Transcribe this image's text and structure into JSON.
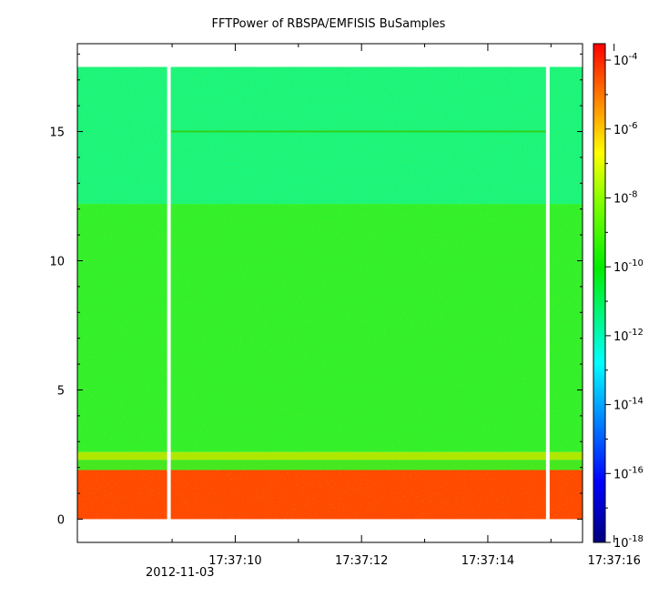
{
  "chart_data": {
    "type": "heatmap",
    "title": "FFTPower of RBSPA/EMFISIS  BuSamples",
    "xlabel": "",
    "ylabel": "",
    "x_ticks": [
      "17:37:10",
      "17:37:12",
      "17:37:14",
      "17:37:16"
    ],
    "x_date_label": "2012-11-03",
    "y_ticks": [
      0,
      5,
      10,
      15
    ],
    "ylim": [
      -0.9,
      18.4
    ],
    "xlim_seconds_after_17_37_08": [
      -0.5,
      7.5
    ],
    "data_gaps_seconds_after_17_37_08": [
      0.95,
      6.95
    ],
    "data_ymax": 17.5,
    "colorbar": {
      "scale": "log",
      "range": [
        1e-18,
        0.0003
      ],
      "tick_mantissa": "10",
      "tick_exponents": [
        "-4",
        "-6",
        "-8",
        "-10",
        "-12",
        "-14",
        "-16",
        "-18"
      ],
      "tick_values": [
        -4,
        -6,
        -8,
        -10,
        -12,
        -14,
        -16,
        -18
      ]
    },
    "bands": [
      {
        "y_from": 0.0,
        "y_to": 1.9,
        "log_power": -6.0,
        "color": "#ff4a00"
      },
      {
        "y_from": 1.9,
        "y_to": 2.3,
        "log_power": -10.0,
        "color": "#44e820"
      },
      {
        "y_from": 2.3,
        "y_to": 2.6,
        "log_power": -9.3,
        "color": "#aee800"
      },
      {
        "y_from": 2.6,
        "y_to": 12.2,
        "log_power": -10.3,
        "color": "#33f02a"
      },
      {
        "y_from": 12.2,
        "y_to": 17.5,
        "log_power": -11.6,
        "color": "#1cf57a"
      }
    ],
    "line_feature_y": 15.0
  }
}
